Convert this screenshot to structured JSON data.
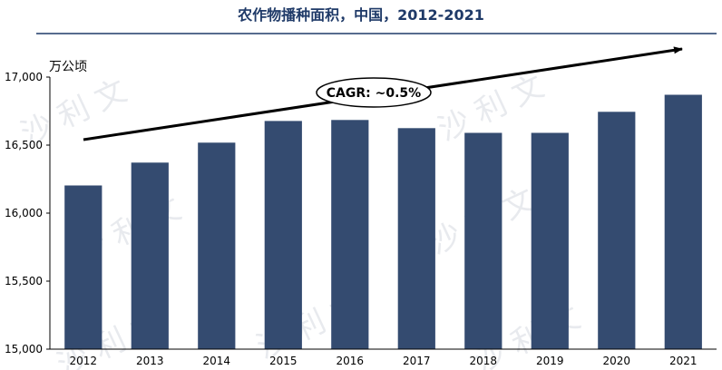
{
  "colors": {
    "title": "#1f3a68",
    "bar": "#344b70",
    "axis": "#000000",
    "divider": "#1f3a68"
  },
  "chart_data": {
    "type": "bar",
    "title": "农作物播种面积，中国，2012-2021",
    "ylabel": "万公顷",
    "xlabel": "",
    "categories": [
      "2012",
      "2013",
      "2014",
      "2015",
      "2016",
      "2017",
      "2018",
      "2019",
      "2020",
      "2021"
    ],
    "values": [
      16203,
      16371,
      16518,
      16677,
      16685,
      16625,
      16590,
      16590,
      16745,
      16870
    ],
    "ylim": [
      15000,
      17000
    ],
    "yticks": [
      15000,
      15500,
      16000,
      16500,
      17000
    ],
    "ytick_labels": [
      "15,000",
      "15,500",
      "16,000",
      "16,500",
      "17,000"
    ],
    "grid": false,
    "annotation": {
      "text": "CAGR: ~0.5%",
      "type": "trend-arrow"
    }
  }
}
